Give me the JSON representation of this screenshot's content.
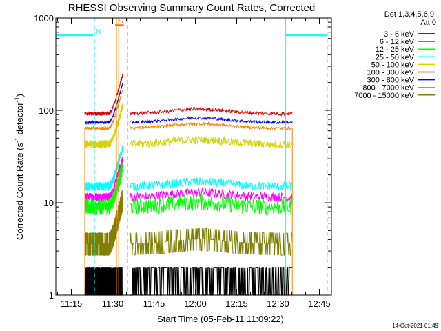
{
  "chart_data": {
    "type": "line",
    "title": "RHESSI Observing Summary Count Rates, Corrected",
    "xlabel": "Start Time (05-Feb-11 11:09:22)",
    "ylabel": "Corrected Count Rate (s",
    "ylabel_sup1": "-1",
    "ylabel_mid": " detector",
    "ylabel_sup2": "-1",
    "ylabel_end": ")",
    "y_scale": "log",
    "xlim_minutes": [
      0,
      100
    ],
    "ylim": [
      1,
      1000
    ],
    "x_ticks": [
      {
        "label": "11:15",
        "t": 5.63
      },
      {
        "label": "11:30",
        "t": 20.63
      },
      {
        "label": "11:45",
        "t": 35.63
      },
      {
        "label": "12:00",
        "t": 50.63
      },
      {
        "label": "12:15",
        "t": 65.63
      },
      {
        "label": "12:30",
        "t": 80.63
      },
      {
        "label": "12:45",
        "t": 95.63
      }
    ],
    "y_ticks": [
      {
        "label": "1",
        "v": 1
      },
      {
        "label": "10",
        "v": 10
      },
      {
        "label": "100",
        "v": 100
      },
      {
        "label": "1000",
        "v": 1000
      }
    ],
    "legend_header": [
      "Det 1,3,4,5,6,9,",
      "Att 0"
    ],
    "legend_placement": "right",
    "series": [
      {
        "name": "3 - 6 keV",
        "color": "#000000",
        "level": 1.6
      },
      {
        "name": "6 - 12 keV",
        "color": "#ff00ff",
        "level": 11.5
      },
      {
        "name": "12 - 25 keV",
        "color": "#00ff00",
        "level": 9.0
      },
      {
        "name": "25 - 50 keV",
        "color": "#00ffff",
        "level": 15.0
      },
      {
        "name": "50 - 100 keV",
        "color": "#d4d400",
        "level": 43.0
      },
      {
        "name": "100 - 300 keV",
        "color": "#e00000",
        "level": 92.0
      },
      {
        "name": "300 - 800 keV",
        "color": "#0000ff",
        "level": 74.0
      },
      {
        "name": "800 - 7000 keV",
        "color": "#ff8000",
        "level": 64.0
      },
      {
        "name": "7000 - 15000 keV",
        "color": "#808000",
        "level": 3.6
      }
    ],
    "data_segments": [
      [
        10.5,
        24.2
      ],
      [
        26.8,
        85.8
      ]
    ],
    "annotations": [
      {
        "label": "N",
        "t_start": 0,
        "t_end": 13.5,
        "value": 650,
        "color": "#00ffff"
      },
      {
        "label": "S",
        "t_start": 21.5,
        "t_end": 24.7,
        "value": 840,
        "color": "#ff8000"
      },
      {
        "label": "",
        "t_start": 83.5,
        "t_end": 98.5,
        "value": 650,
        "color": "#00ffff"
      }
    ],
    "footer_date": "14-Oct-2021 01:49"
  }
}
